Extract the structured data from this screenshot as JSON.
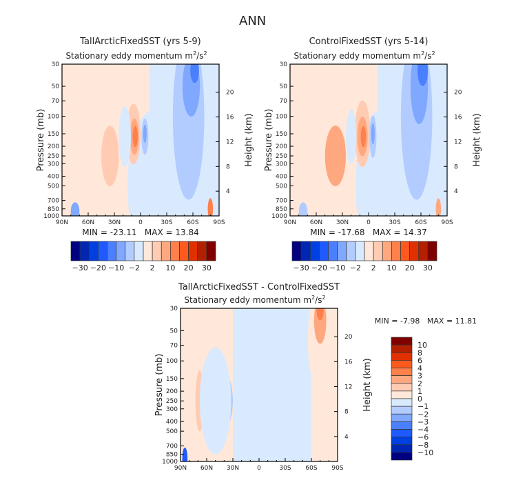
{
  "title": "ANN",
  "colors": [
    "#000080",
    "#0026b3",
    "#0040e0",
    "#1e5aff",
    "#4a80ff",
    "#80a8ff",
    "#b3ccff",
    "#d9eaff",
    "#ffe8d9",
    "#ffccb3",
    "#ffa880",
    "#ff804a",
    "#ff5a1e",
    "#e03000",
    "#b32000",
    "#800000"
  ],
  "chart_data": [
    {
      "type": "heatmap",
      "title": "TallArcticFixedSST (yrs 5-9)",
      "subtitle": "Stationary eddy momentum",
      "units": "m²/s²",
      "ylabel": "Pressure (mb)",
      "ylabel_right": "Height (km)",
      "xticks": [
        "90N",
        "60N",
        "30N",
        "0",
        "30S",
        "60S",
        "90S"
      ],
      "yticks": [
        30,
        50,
        70,
        100,
        150,
        200,
        250,
        300,
        400,
        500,
        700,
        850,
        1000
      ],
      "yticks_right": [
        4,
        8,
        12,
        16,
        20
      ],
      "yscale": "log",
      "ylim": [
        1000,
        30
      ],
      "stats": "MIN = -23.11   MAX = 13.84",
      "colorbar_labels": [
        "-30",
        "-20",
        "-10",
        "-2",
        "2",
        "10",
        "20",
        "30"
      ]
    },
    {
      "type": "heatmap",
      "title": "ControlFixedSST (yrs 5-14)",
      "subtitle": "Stationary eddy momentum",
      "units": "m²/s²",
      "ylabel": "Pressure (mb)",
      "ylabel_right": "Height (km)",
      "xticks": [
        "90N",
        "60N",
        "30N",
        "0",
        "30S",
        "60S",
        "90S"
      ],
      "yticks": [
        30,
        50,
        70,
        100,
        150,
        200,
        250,
        300,
        400,
        500,
        700,
        850,
        1000
      ],
      "yticks_right": [
        4,
        8,
        12,
        16,
        20
      ],
      "yscale": "log",
      "ylim": [
        1000,
        30
      ],
      "stats": "MIN = -17.68   MAX = 14.37",
      "colorbar_labels": [
        "-30",
        "-20",
        "-10",
        "-2",
        "2",
        "10",
        "20",
        "30"
      ]
    },
    {
      "type": "heatmap",
      "title": "TallArcticFixedSST - ControlFixedSST",
      "subtitle": "Stationary eddy momentum",
      "units": "m²/s²",
      "ylabel": "Pressure (mb)",
      "ylabel_right": "Height (km)",
      "xticks": [
        "90N",
        "60N",
        "30N",
        "0",
        "30S",
        "60S",
        "90S"
      ],
      "yticks": [
        30,
        50,
        70,
        100,
        150,
        200,
        250,
        300,
        400,
        500,
        700,
        850,
        1000
      ],
      "yticks_right": [
        4,
        8,
        12,
        16,
        20
      ],
      "yscale": "log",
      "ylim": [
        1000,
        30
      ],
      "stats": "MIN = -7.98   MAX = 11.81",
      "colorbar_labels": [
        "10",
        "8",
        "6",
        "4",
        "3",
        "2",
        "1",
        "0",
        "-1",
        "-2",
        "-3",
        "-4",
        "-6",
        "-8",
        "-10"
      ]
    }
  ]
}
